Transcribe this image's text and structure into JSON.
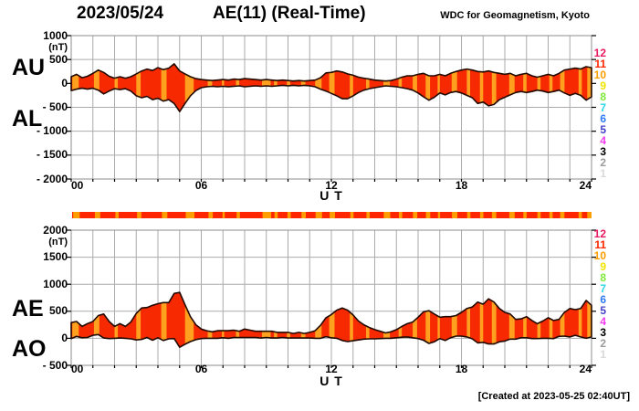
{
  "header": {
    "date": "2023/05/24",
    "title": "AE(11) (Real-Time)",
    "source": "WDC for Geomagnetism, Kyoto"
  },
  "footer": {
    "created_at": "[Created at 2023-05-25 02:40UT]"
  },
  "legend": {
    "items": [
      {
        "label": "12",
        "color": "#e81860"
      },
      {
        "label": "11",
        "color": "#ff2600"
      },
      {
        "label": "10",
        "color": "#ff9e00"
      },
      {
        "label": "9",
        "color": "#f2e400"
      },
      {
        "label": "8",
        "color": "#7fe83a"
      },
      {
        "label": "7",
        "color": "#30d5e8"
      },
      {
        "label": "6",
        "color": "#2e79f5"
      },
      {
        "label": "5",
        "color": "#4541c9"
      },
      {
        "label": "4",
        "color": "#f23cf0"
      },
      {
        "label": "3",
        "color": "#000000"
      },
      {
        "label": "2",
        "color": "#9b9b9b"
      },
      {
        "label": "1",
        "color": "#d9d9d9"
      }
    ]
  },
  "station_bar": {
    "default_stations": 11,
    "reduced_stations": 10,
    "reduced_segments_hours": [
      [
        0.05,
        0.35
      ],
      [
        1.05,
        1.3
      ],
      [
        2.0,
        2.15
      ],
      [
        3.0,
        3.2
      ],
      [
        4.15,
        4.4
      ],
      [
        5.25,
        5.65
      ],
      [
        6.3,
        6.5
      ],
      [
        6.95,
        7.05
      ],
      [
        7.6,
        7.75
      ],
      [
        8.8,
        9.2
      ],
      [
        9.35,
        9.5
      ],
      [
        9.95,
        10.1
      ],
      [
        10.6,
        10.8
      ],
      [
        11.25,
        11.55
      ],
      [
        11.9,
        12.15
      ],
      [
        12.85,
        13.0
      ],
      [
        13.6,
        13.75
      ],
      [
        14.4,
        14.7
      ],
      [
        15.1,
        15.25
      ],
      [
        15.75,
        15.95
      ],
      [
        16.35,
        16.55
      ],
      [
        16.9,
        17.0
      ],
      [
        17.55,
        17.8
      ],
      [
        18.25,
        18.4
      ],
      [
        18.85,
        19.0
      ],
      [
        19.4,
        19.6
      ],
      [
        20.2,
        20.45
      ],
      [
        20.85,
        21.0
      ],
      [
        21.5,
        21.65
      ],
      [
        22.05,
        22.2
      ],
      [
        22.55,
        22.75
      ],
      [
        23.4,
        23.55
      ],
      [
        23.8,
        24.0
      ]
    ]
  },
  "chart_data": [
    {
      "type": "area",
      "name": "AU-AL",
      "unit": "(nT)",
      "xlabel": "U T",
      "ylim": [
        -2000,
        1000
      ],
      "yticks": [
        1000,
        500,
        0,
        -500,
        -1000,
        -1500,
        -2000
      ],
      "ytick_labels": [
        "1000",
        "500",
        "0",
        "- 500",
        "- 1000",
        "- 1500",
        "- 2000"
      ],
      "xticks_hours": [
        0,
        6,
        12,
        18,
        24
      ],
      "xtick_labels": [
        "00",
        "06",
        "12",
        "18",
        "24"
      ],
      "x_hours": {
        "start": 0,
        "step": 0.25,
        "end": 24
      },
      "x_grid_step_hours": 1,
      "grid": true,
      "colors": {
        "fill": "#f62900",
        "stripe": "#ffa01e",
        "outline": "#230a00"
      },
      "series": [
        {
          "name": "AU",
          "values": [
            140,
            190,
            120,
            150,
            210,
            280,
            230,
            150,
            110,
            140,
            110,
            140,
            200,
            260,
            300,
            270,
            330,
            290,
            320,
            410,
            260,
            200,
            140,
            100,
            80,
            70,
            60,
            70,
            80,
            70,
            90,
            80,
            100,
            90,
            80,
            70,
            80,
            70,
            60,
            70,
            60,
            50,
            60,
            50,
            60,
            70,
            120,
            220,
            230,
            260,
            240,
            200,
            170,
            130,
            110,
            90,
            70,
            60,
            50,
            60,
            90,
            130,
            160,
            160,
            190,
            210,
            160,
            160,
            190,
            160,
            210,
            250,
            280,
            300,
            280,
            250,
            240,
            260,
            230,
            210,
            190,
            210,
            160,
            190,
            210,
            160,
            130,
            160,
            190,
            160,
            210,
            280,
            300,
            320,
            300,
            350,
            330
          ]
        },
        {
          "name": "AL",
          "values": [
            -150,
            -120,
            -100,
            -120,
            -100,
            -140,
            -220,
            -160,
            -110,
            -130,
            -110,
            -160,
            -260,
            -300,
            -270,
            -340,
            -310,
            -370,
            -340,
            -420,
            -590,
            -420,
            -260,
            -150,
            -90,
            -70,
            -60,
            -70,
            -60,
            -70,
            -60,
            -50,
            -70,
            -60,
            -50,
            -60,
            -50,
            -60,
            -50,
            -40,
            -50,
            -40,
            -50,
            -40,
            -50,
            -70,
            -120,
            -160,
            -210,
            -260,
            -320,
            -320,
            -260,
            -190,
            -140,
            -110,
            -90,
            -70,
            -50,
            -60,
            -70,
            -90,
            -110,
            -140,
            -200,
            -280,
            -350,
            -290,
            -200,
            -240,
            -190,
            -170,
            -200,
            -250,
            -300,
            -420,
            -390,
            -470,
            -440,
            -340,
            -290,
            -240,
            -190,
            -170,
            -190,
            -170,
            -140,
            -160,
            -190,
            -170,
            -140,
            -200,
            -250,
            -210,
            -250,
            -350,
            -280
          ]
        }
      ]
    },
    {
      "type": "area",
      "name": "AE-AO",
      "unit": "(nT)",
      "xlabel": "U T",
      "ylim": [
        -500,
        2000
      ],
      "yticks": [
        2000,
        1500,
        1000,
        500,
        0,
        -500
      ],
      "ytick_labels": [
        "2000",
        "1500",
        "1000",
        "500",
        "0",
        "- 500"
      ],
      "xticks_hours": [
        0,
        6,
        12,
        18,
        24
      ],
      "xtick_labels": [
        "00",
        "06",
        "12",
        "18",
        "24"
      ],
      "x_hours": {
        "start": 0,
        "step": 0.25,
        "end": 24
      },
      "x_grid_step_hours": 1,
      "grid": true,
      "colors": {
        "fill": "#f62900",
        "stripe": "#ffa01e",
        "outline": "#230a00"
      },
      "series": [
        {
          "name": "AE",
          "values": [
            290,
            310,
            220,
            270,
            310,
            420,
            450,
            310,
            220,
            270,
            220,
            300,
            460,
            560,
            570,
            610,
            640,
            660,
            660,
            830,
            850,
            620,
            400,
            250,
            170,
            140,
            120,
            140,
            140,
            140,
            150,
            130,
            170,
            150,
            130,
            130,
            130,
            130,
            110,
            110,
            110,
            90,
            110,
            90,
            110,
            140,
            240,
            380,
            440,
            520,
            560,
            520,
            430,
            320,
            250,
            200,
            160,
            130,
            100,
            120,
            160,
            220,
            270,
            300,
            390,
            490,
            510,
            450,
            390,
            400,
            400,
            420,
            480,
            550,
            580,
            670,
            630,
            730,
            670,
            550,
            480,
            450,
            350,
            360,
            400,
            330,
            270,
            320,
            380,
            330,
            350,
            480,
            550,
            530,
            550,
            700,
            610
          ]
        },
        {
          "name": "AO",
          "values": [
            -5,
            35,
            10,
            15,
            55,
            70,
            5,
            -5,
            0,
            5,
            0,
            -10,
            -30,
            -20,
            15,
            -35,
            10,
            -40,
            -10,
            -5,
            -165,
            -110,
            -60,
            -25,
            -5,
            0,
            0,
            0,
            10,
            0,
            15,
            15,
            15,
            15,
            15,
            5,
            15,
            5,
            5,
            15,
            5,
            5,
            5,
            5,
            5,
            0,
            0,
            30,
            10,
            0,
            -40,
            -60,
            -45,
            -30,
            -15,
            -10,
            -10,
            -5,
            0,
            0,
            10,
            20,
            25,
            10,
            -5,
            -35,
            -95,
            -65,
            -5,
            -40,
            10,
            40,
            40,
            25,
            -10,
            -85,
            -75,
            -105,
            -105,
            -65,
            -50,
            -15,
            -15,
            10,
            10,
            -5,
            -5,
            0,
            0,
            -5,
            35,
            40,
            25,
            55,
            25,
            0,
            25
          ]
        }
      ]
    }
  ]
}
